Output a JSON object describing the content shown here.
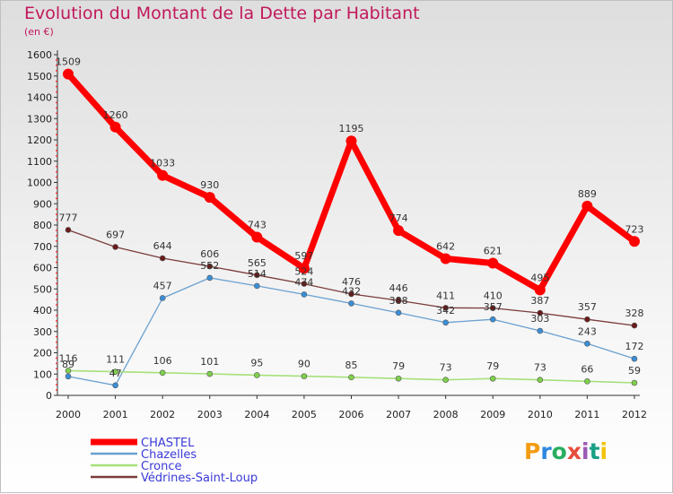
{
  "title": "Evolution du Montant de la Dette par Habitant",
  "unit": "(en €)",
  "brand": {
    "text": "Proxiti",
    "colors": [
      "#f39c12",
      "#2e86de",
      "#27ae60",
      "#e74c3c",
      "#9b59b6",
      "#16a085",
      "#f1c40f"
    ]
  },
  "chart_data": {
    "type": "line",
    "x": [
      "2000",
      "2001",
      "2002",
      "2003",
      "2004",
      "2005",
      "2006",
      "2007",
      "2008",
      "2009",
      "2010",
      "2011",
      "2012"
    ],
    "ylim": [
      0,
      1600
    ],
    "yticks": [
      0,
      100,
      200,
      300,
      400,
      500,
      600,
      700,
      800,
      900,
      1000,
      1100,
      1200,
      1300,
      1400,
      1500,
      1600
    ],
    "grid": false,
    "legend": "bottom-left",
    "series": [
      {
        "name": "CHASTEL",
        "color": "#ff0000",
        "marker": "#ff0000",
        "width": 7,
        "values": [
          1509,
          1260,
          1033,
          930,
          743,
          597,
          1195,
          774,
          642,
          621,
          495,
          889,
          723
        ]
      },
      {
        "name": "Chazelles",
        "color": "#6aa0d0",
        "marker": "#3a8fd8",
        "width": 1.3,
        "values": [
          89,
          47,
          457,
          552,
          514,
          474,
          432,
          388,
          342,
          357,
          303,
          243,
          172
        ]
      },
      {
        "name": "Cronce",
        "color": "#a6e07a",
        "marker": "#7ed04a",
        "width": 1.6,
        "values": [
          116,
          111,
          106,
          101,
          95,
          90,
          85,
          79,
          73,
          79,
          73,
          66,
          59
        ]
      },
      {
        "name": "Védrines-Saint-Loup",
        "color": "#7a3a3a",
        "marker": "#6b1a1a",
        "width": 1.3,
        "values": [
          777,
          697,
          644,
          606,
          565,
          524,
          476,
          446,
          411,
          410,
          387,
          357,
          328
        ]
      }
    ]
  }
}
